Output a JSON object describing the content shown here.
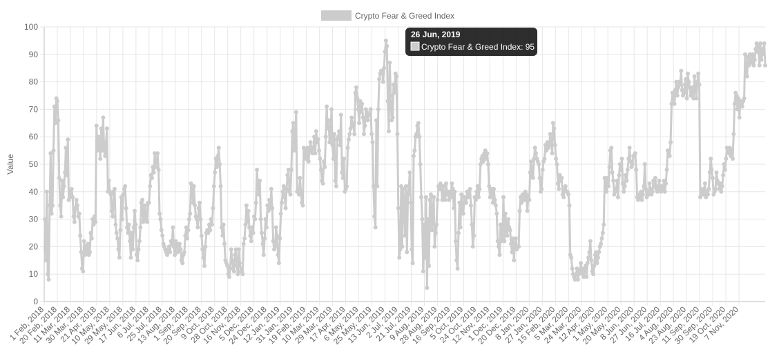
{
  "chart_data": {
    "type": "line",
    "title": "",
    "xlabel": "",
    "ylabel": "Value",
    "ylim": [
      0,
      100
    ],
    "y_ticks": [
      0,
      10,
      20,
      30,
      40,
      50,
      60,
      70,
      80,
      90,
      100
    ],
    "grid": true,
    "legend_position": "top-center",
    "x_tick_labels": [
      "1 Feb, 2018",
      "20 Feb, 2018",
      "11 Mar, 2018",
      "30 Mar, 2018",
      "21 Apr, 2018",
      "10 May, 2018",
      "29 May, 2018",
      "17 Jun, 2018",
      "6 Jul, 2018",
      "25 Jul, 2018",
      "13 Aug, 2018",
      "1 Sep, 2018",
      "20 Sep, 2018",
      "9 Oct, 2018",
      "28 Oct, 2018",
      "16 Nov, 2018",
      "5 Dec, 2018",
      "24 Dec, 2018",
      "12 Jan, 2019",
      "31 Jan, 2019",
      "19 Feb, 2019",
      "10 Mar, 2019",
      "29 Mar, 2019",
      "17 Apr, 2019",
      "6 May, 2019",
      "25 May, 2019",
      "13 Jun, 2019",
      "2 Jul, 2019",
      "21 Jul, 2019",
      "9 Aug, 2019",
      "28 Aug, 2019",
      "16 Sep, 2019",
      "5 Oct, 2019",
      "24 Oct, 2019",
      "12 Nov, 2019",
      "1 Dec, 2019",
      "20 Dec, 2019",
      "8 Jan, 2020",
      "27 Jan, 2020",
      "15 Feb, 2020",
      "5 Mar, 2020",
      "24 Mar, 2020",
      "12 Apr, 2020",
      "1 May, 2020",
      "20 May, 2020",
      "8 Jun, 2020",
      "27 Jun, 2020",
      "16 Jul, 2020",
      "4 Aug, 2020",
      "23 Aug, 2020",
      "11 Sep, 2020",
      "30 Sep, 2020",
      "19 Oct, 2020",
      "7 Nov, 2020"
    ],
    "series": [
      {
        "name": "Crypto Fear & Greed Index",
        "color": "#cccccc",
        "values": [
          30,
          15,
          40,
          10,
          8,
          35,
          54,
          32,
          35,
          55,
          71,
          65,
          74,
          73,
          66,
          45,
          35,
          31,
          44,
          38,
          42,
          47,
          56,
          46,
          59,
          37,
          38,
          40,
          41,
          38,
          31,
          29,
          34,
          37,
          35,
          31,
          32,
          24,
          18,
          12,
          11,
          22,
          17,
          20,
          18,
          21,
          17,
          18,
          25,
          23,
          30,
          28,
          31,
          29,
          64,
          55,
          60,
          57,
          52,
          63,
          55,
          67,
          55,
          53,
          58,
          63,
          40,
          44,
          40,
          39,
          33,
          31,
          40,
          41,
          28,
          25,
          23,
          19,
          16,
          26,
          38,
          30,
          39,
          41,
          42,
          34,
          27,
          25,
          28,
          22,
          16,
          25,
          19,
          27,
          33,
          28,
          17,
          15,
          19,
          22,
          27,
          36,
          37,
          29,
          32,
          35,
          30,
          29,
          36,
          36,
          42,
          46,
          45,
          49,
          47,
          54,
          49,
          51,
          54,
          48,
          32,
          30,
          26,
          24,
          21,
          20,
          19,
          18,
          17,
          19,
          20,
          18,
          22,
          21,
          27,
          20,
          17,
          22,
          21,
          18,
          20,
          21,
          19,
          15,
          14,
          17,
          18,
          24,
          27,
          23,
          26,
          30,
          32,
          43,
          40,
          36,
          42,
          35,
          31,
          30,
          27,
          34,
          36,
          30,
          24,
          19,
          16,
          13,
          20,
          25,
          26,
          25,
          28,
          26,
          30,
          28,
          34,
          42,
          47,
          52,
          49,
          53,
          56,
          50,
          42,
          27,
          24,
          28,
          21,
          15,
          14,
          13,
          10,
          9,
          12,
          19,
          15,
          12,
          11,
          17,
          19,
          13,
          10,
          19,
          14,
          11,
          12,
          10,
          21,
          23,
          28,
          35,
          29,
          33,
          27,
          24,
          22,
          27,
          25,
          31,
          30,
          36,
          48,
          42,
          39,
          44,
          30,
          25,
          21,
          17,
          23,
          30,
          27,
          35,
          33,
          37,
          34,
          41,
          34,
          22,
          19,
          20,
          27,
          24,
          17,
          14,
          23,
          32,
          36,
          40,
          42,
          38,
          34,
          41,
          46,
          48,
          40,
          39,
          48,
          62,
          65,
          55,
          59,
          69,
          40,
          41,
          39,
          45,
          40,
          36,
          35,
          56,
          55,
          52,
          54,
          56,
          51,
          55,
          58,
          56,
          54,
          56,
          60,
          54,
          62,
          58,
          59,
          55,
          52,
          48,
          44,
          43,
          51,
          49,
          60,
          71,
          63,
          66,
          58,
          60,
          70,
          57,
          52,
          61,
          44,
          42,
          59,
          60,
          62,
          57,
          68,
          47,
          45,
          52,
          40,
          41,
          42,
          56,
          59,
          61,
          63,
          67,
          64,
          65,
          61,
          76,
          78,
          74,
          70,
          65,
          73,
          69,
          72,
          67,
          61,
          64,
          70,
          69,
          66,
          68,
          68,
          70,
          61,
          58,
          42,
          31,
          27,
          66,
          42,
          70,
          81,
          83,
          84,
          84,
          80,
          85,
          91,
          95,
          93,
          73,
          62,
          87,
          75,
          66,
          67,
          79,
          76,
          83,
          82,
          61,
          34,
          16,
          19,
          42,
          20,
          41,
          37,
          24,
          42,
          18,
          39,
          42,
          47,
          36,
          19,
          14,
          53,
          55,
          60,
          61,
          64,
          65,
          60,
          50,
          38,
          30,
          11,
          28,
          16,
          38,
          5,
          30,
          13,
          37,
          39,
          26,
          31,
          38,
          20,
          25,
          28,
          37,
          42,
          41,
          43,
          41,
          37,
          42,
          38,
          37,
          43,
          39,
          40,
          37,
          40,
          38,
          43,
          41,
          34,
          40,
          22,
          15,
          12,
          25,
          36,
          27,
          39,
          34,
          32,
          38,
          36,
          36,
          40,
          38,
          40,
          41,
          35,
          28,
          20,
          24,
          38,
          37,
          40,
          42,
          38,
          41,
          50,
          52,
          53,
          51,
          54,
          55,
          52,
          54,
          50,
          42,
          38,
          40,
          41,
          36,
          41,
          37,
          35,
          32,
          22,
          20,
          17,
          28,
          22,
          23,
          38,
          22,
          32,
          27,
          24,
          30,
          27,
          26,
          21,
          18,
          23,
          15,
          21,
          23,
          19,
          20,
          20,
          33,
          38,
          36,
          39,
          39,
          37,
          40,
          39,
          33,
          38,
          37,
          47,
          51,
          46,
          45,
          52,
          56,
          54,
          52,
          51,
          50,
          45,
          40,
          41,
          48,
          51,
          52,
          57,
          55,
          58,
          56,
          57,
          61,
          58,
          54,
          65,
          63,
          57,
          52,
          50,
          43,
          41,
          46,
          44,
          45,
          39,
          38,
          41,
          42,
          40,
          40,
          39,
          35,
          17,
          16,
          12,
          10,
          9,
          8,
          10,
          12,
          8,
          10,
          11,
          14,
          12,
          10,
          9,
          12,
          13,
          9,
          14,
          16,
          18,
          22,
          15,
          11,
          10,
          13,
          17,
          18,
          14,
          16,
          18,
          20,
          21,
          23,
          25,
          28,
          45,
          44,
          40,
          45,
          42,
          49,
          55,
          56,
          47,
          44,
          39,
          40,
          41,
          44,
          38,
          46,
          50,
          48,
          52,
          43,
          40,
          42,
          46,
          44,
          48,
          52,
          56,
          51,
          49,
          50,
          53,
          53,
          54,
          48,
          38,
          37,
          39,
          38,
          40,
          37,
          39,
          42,
          50,
          41,
          38,
          40,
          39,
          43,
          41,
          39,
          40,
          44,
          42,
          45,
          41,
          40,
          42,
          44,
          41,
          40,
          42,
          41,
          44,
          40,
          43,
          48,
          55,
          54,
          53,
          58,
          72,
          76,
          74,
          72,
          77,
          80,
          75,
          78,
          80,
          79,
          84,
          77,
          75,
          76,
          79,
          81,
          74,
          83,
          80,
          78,
          75,
          77,
          78,
          74,
          82,
          78,
          74,
          80,
          83,
          79,
          38,
          41,
          40,
          39,
          41,
          43,
          38,
          40,
          39,
          41,
          47,
          52,
          48,
          45,
          39,
          40,
          41,
          47,
          44,
          43,
          41,
          43,
          40,
          42,
          46,
          50,
          48,
          52,
          56,
          55,
          54,
          56,
          53,
          55,
          52,
          61,
          72,
          76,
          75,
          70,
          74,
          67,
          73,
          72,
          71,
          73,
          74,
          90,
          85,
          82,
          89,
          86,
          90,
          87,
          88,
          90,
          86,
          88,
          92,
          94,
          91,
          93,
          86,
          94,
          88,
          90,
          92,
          94,
          86
        ]
      }
    ],
    "tooltip": {
      "title": "26 Jun, 2019",
      "series_label": "Crypto Fear & Greed Index",
      "value": 95
    }
  }
}
